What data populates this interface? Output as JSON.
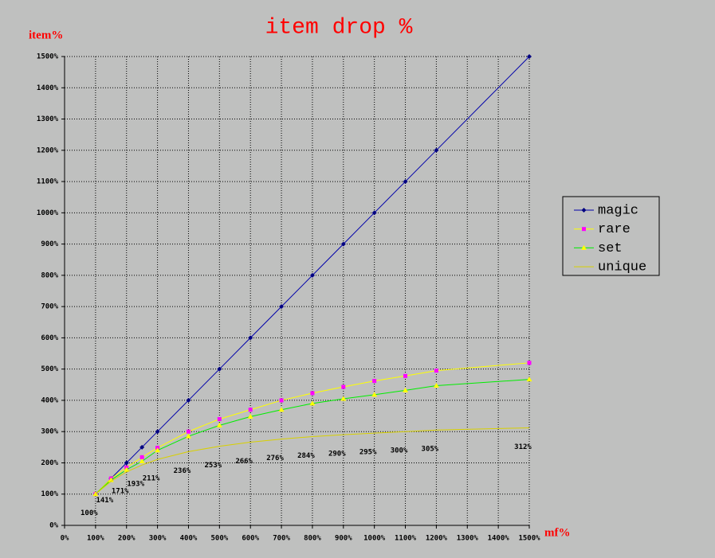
{
  "chart_data": {
    "type": "line",
    "title": "item drop %",
    "y_label": "item%",
    "x_label": "mf%",
    "x": [
      100,
      150,
      200,
      250,
      300,
      400,
      500,
      600,
      700,
      800,
      900,
      1000,
      1100,
      1200,
      1500
    ],
    "series": [
      {
        "name": "magic",
        "color": "#0000aa",
        "marker": "diamond",
        "marker_color": "#000080",
        "values": [
          100,
          150,
          200,
          250,
          300,
          400,
          500,
          600,
          700,
          800,
          900,
          1000,
          1100,
          1200,
          1500
        ]
      },
      {
        "name": "rare",
        "color": "#ffff00",
        "marker": "square",
        "marker_color": "#ff00ff",
        "values": [
          100,
          150,
          185,
          218,
          248,
          300,
          340,
          370,
          400,
          423,
          443,
          462,
          478,
          495,
          520
        ]
      },
      {
        "name": "set",
        "color": "#00ee00",
        "marker": "triangle",
        "marker_color": "#ffff00",
        "values": [
          100,
          145,
          178,
          205,
          240,
          285,
          320,
          348,
          370,
          390,
          405,
          418,
          432,
          447,
          467
        ]
      },
      {
        "name": "unique",
        "color": "#d8d000",
        "marker": null,
        "marker_color": null,
        "values": [
          100,
          141,
          171,
          193,
          211,
          236,
          253,
          266,
          276,
          284,
          290,
          295,
          300,
          305,
          312
        ],
        "value_labels": [
          "100%",
          "141%",
          "171%",
          "193%",
          "211%",
          "236%",
          "253%",
          "266%",
          "276%",
          "284%",
          "290%",
          "295%",
          "300%",
          "305%",
          "312%"
        ]
      }
    ],
    "xlim": [
      0,
      1500
    ],
    "ylim": [
      0,
      1500
    ],
    "xticks": [
      {
        "value": 0,
        "label": "0%"
      },
      {
        "value": 100,
        "label": "100%"
      },
      {
        "value": 200,
        "label": "200%"
      },
      {
        "value": 300,
        "label": "300%"
      },
      {
        "value": 400,
        "label": "400%"
      },
      {
        "value": 500,
        "label": "500%"
      },
      {
        "value": 600,
        "label": "600%"
      },
      {
        "value": 700,
        "label": "700%"
      },
      {
        "value": 800,
        "label": "800%"
      },
      {
        "value": 900,
        "label": "900%"
      },
      {
        "value": 1000,
        "label": "1000%"
      },
      {
        "value": 1100,
        "label": "1100%"
      },
      {
        "value": 1200,
        "label": "1200%"
      },
      {
        "value": 1300,
        "label": "1300%"
      },
      {
        "value": 1400,
        "label": "1400%"
      },
      {
        "value": 1500,
        "label": "1500%"
      }
    ],
    "yticks": [
      {
        "value": 0,
        "label": "0%"
      },
      {
        "value": 100,
        "label": "100%"
      },
      {
        "value": 200,
        "label": "200%"
      },
      {
        "value": 300,
        "label": "300%"
      },
      {
        "value": 400,
        "label": "400%"
      },
      {
        "value": 500,
        "label": "500%"
      },
      {
        "value": 600,
        "label": "600%"
      },
      {
        "value": 700,
        "label": "700%"
      },
      {
        "value": 800,
        "label": "800%"
      },
      {
        "value": 900,
        "label": "900%"
      },
      {
        "value": 1000,
        "label": "1000%"
      },
      {
        "value": 1100,
        "label": "1100%"
      },
      {
        "value": 1200,
        "label": "1200%"
      },
      {
        "value": 1300,
        "label": "1300%"
      },
      {
        "value": 1400,
        "label": "1400%"
      },
      {
        "value": 1500,
        "label": "1500%"
      }
    ],
    "grid": true,
    "legend": "right"
  }
}
